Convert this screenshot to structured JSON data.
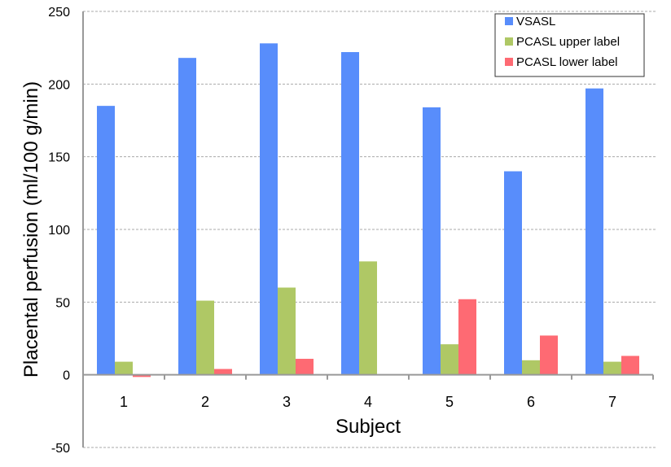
{
  "chart_data": {
    "type": "bar",
    "title": "",
    "xlabel": "Subject",
    "ylabel": "Placental perfusion (ml/100 g/min)",
    "ylim": [
      -50,
      250
    ],
    "yticks": [
      -50,
      0,
      50,
      100,
      150,
      200,
      250
    ],
    "grid": true,
    "legend_position": "top-right",
    "categories": [
      "1",
      "2",
      "3",
      "4",
      "5",
      "6",
      "7"
    ],
    "series": [
      {
        "name": "VSASL",
        "color": "#588dfb",
        "values": [
          185,
          218,
          228,
          222,
          184,
          140,
          197
        ]
      },
      {
        "name": "PCASL upper label",
        "color": "#afc865",
        "values": [
          9,
          51,
          60,
          78,
          21,
          10,
          9
        ]
      },
      {
        "name": "PCASL lower label",
        "color": "#fe6a73",
        "values": [
          -1.5,
          4,
          11,
          0,
          52,
          27,
          13
        ]
      }
    ]
  }
}
